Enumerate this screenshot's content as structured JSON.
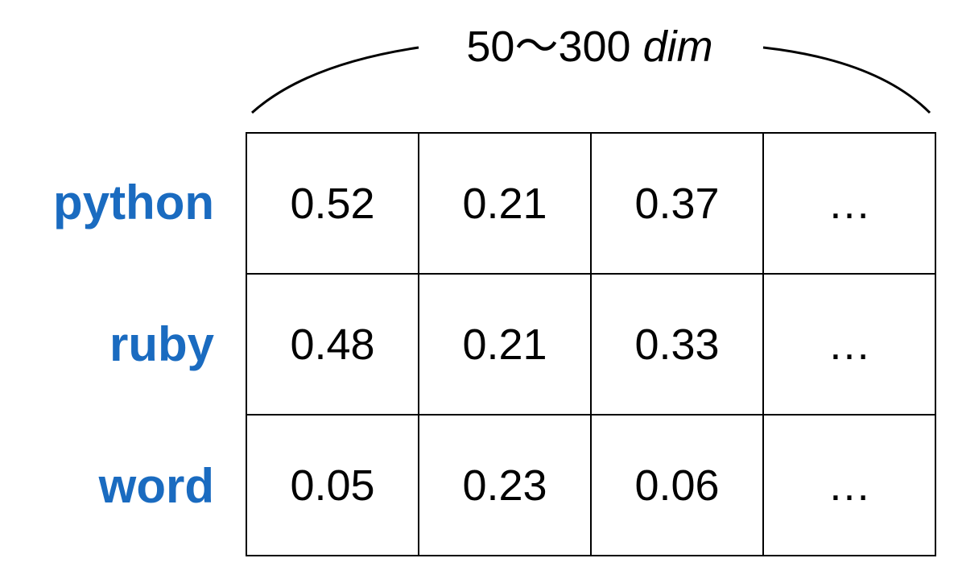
{
  "dimension_label": {
    "range": "50〜300",
    "unit": "dim"
  },
  "rows": [
    {
      "word": "python",
      "values": [
        "0.52",
        "0.21",
        "0.37",
        "…"
      ]
    },
    {
      "word": "ruby",
      "values": [
        "0.48",
        "0.21",
        "0.33",
        "…"
      ]
    },
    {
      "word": "word",
      "values": [
        "0.05",
        "0.23",
        "0.06",
        "…"
      ]
    }
  ],
  "colors": {
    "word_label": "#1a6bc0",
    "grid_line": "#000000",
    "text": "#000000"
  }
}
